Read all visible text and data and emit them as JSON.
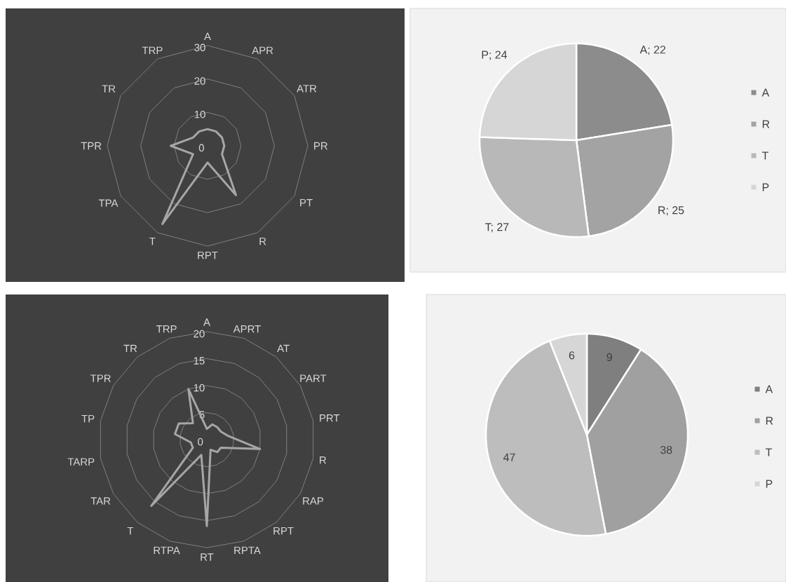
{
  "chart_data": [
    {
      "type": "radar",
      "categories": [
        "A",
        "APR",
        "ATR",
        "PR",
        "PT",
        "R",
        "RPT",
        "T",
        "TPA",
        "TPR",
        "TR",
        "TRP"
      ],
      "series": [
        {
          "color": "#a6a6a6",
          "values": [
            5,
            5,
            5,
            5,
            5,
            17,
            5,
            27,
            5,
            11,
            5,
            5
          ]
        }
      ],
      "ylim": [
        0,
        30
      ],
      "yticks": [
        0,
        10,
        20,
        30
      ],
      "grid": true
    },
    {
      "type": "pie",
      "categories": [
        "A",
        "R",
        "T",
        "P"
      ],
      "values": [
        22,
        25,
        27,
        24
      ],
      "colors": [
        "#8c8c8c",
        "#a3a3a3",
        "#b8b8b8",
        "#d6d6d6"
      ],
      "value_labels": [
        "A; 22",
        "R; 25",
        "T; 27",
        "P; 24"
      ],
      "legend": "right"
    },
    {
      "type": "radar",
      "categories": [
        "A",
        "APRT",
        "AT",
        "PART",
        "PRT",
        "R",
        "RAP",
        "RPT",
        "RPTA",
        "RT",
        "RTPA",
        "T",
        "TAR",
        "TARP",
        "TP",
        "TPR",
        "TR",
        "TRP"
      ],
      "series": [
        {
          "color": "#a6a6a6",
          "values": [
            2,
            3,
            3,
            3,
            4,
            10,
            3,
            3,
            2,
            16,
            3,
            16,
            3,
            3,
            6,
            6,
            4,
            10
          ]
        }
      ],
      "ylim": [
        0,
        20
      ],
      "yticks": [
        0,
        5,
        10,
        15,
        20
      ],
      "grid": true
    },
    {
      "type": "pie",
      "categories": [
        "A",
        "R",
        "T",
        "P"
      ],
      "values": [
        9,
        38,
        47,
        6
      ],
      "colors": [
        "#7f7f7f",
        "#a0a0a0",
        "#bdbdbd",
        "#d6d6d6"
      ],
      "data_labels": true,
      "legend": "right"
    }
  ]
}
